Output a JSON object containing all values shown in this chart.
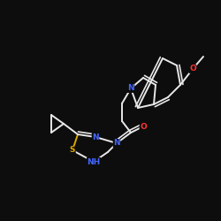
{
  "background_color": "#0d0d0d",
  "bond_color": "#e8e8e8",
  "atom_colors": {
    "N": "#4466ff",
    "O": "#ff3333",
    "S": "#ddaa00",
    "C": "#e8e8e8"
  },
  "figsize": [
    2.5,
    2.5
  ],
  "dpi": 100,
  "lw": 1.4,
  "fs": 6.5
}
